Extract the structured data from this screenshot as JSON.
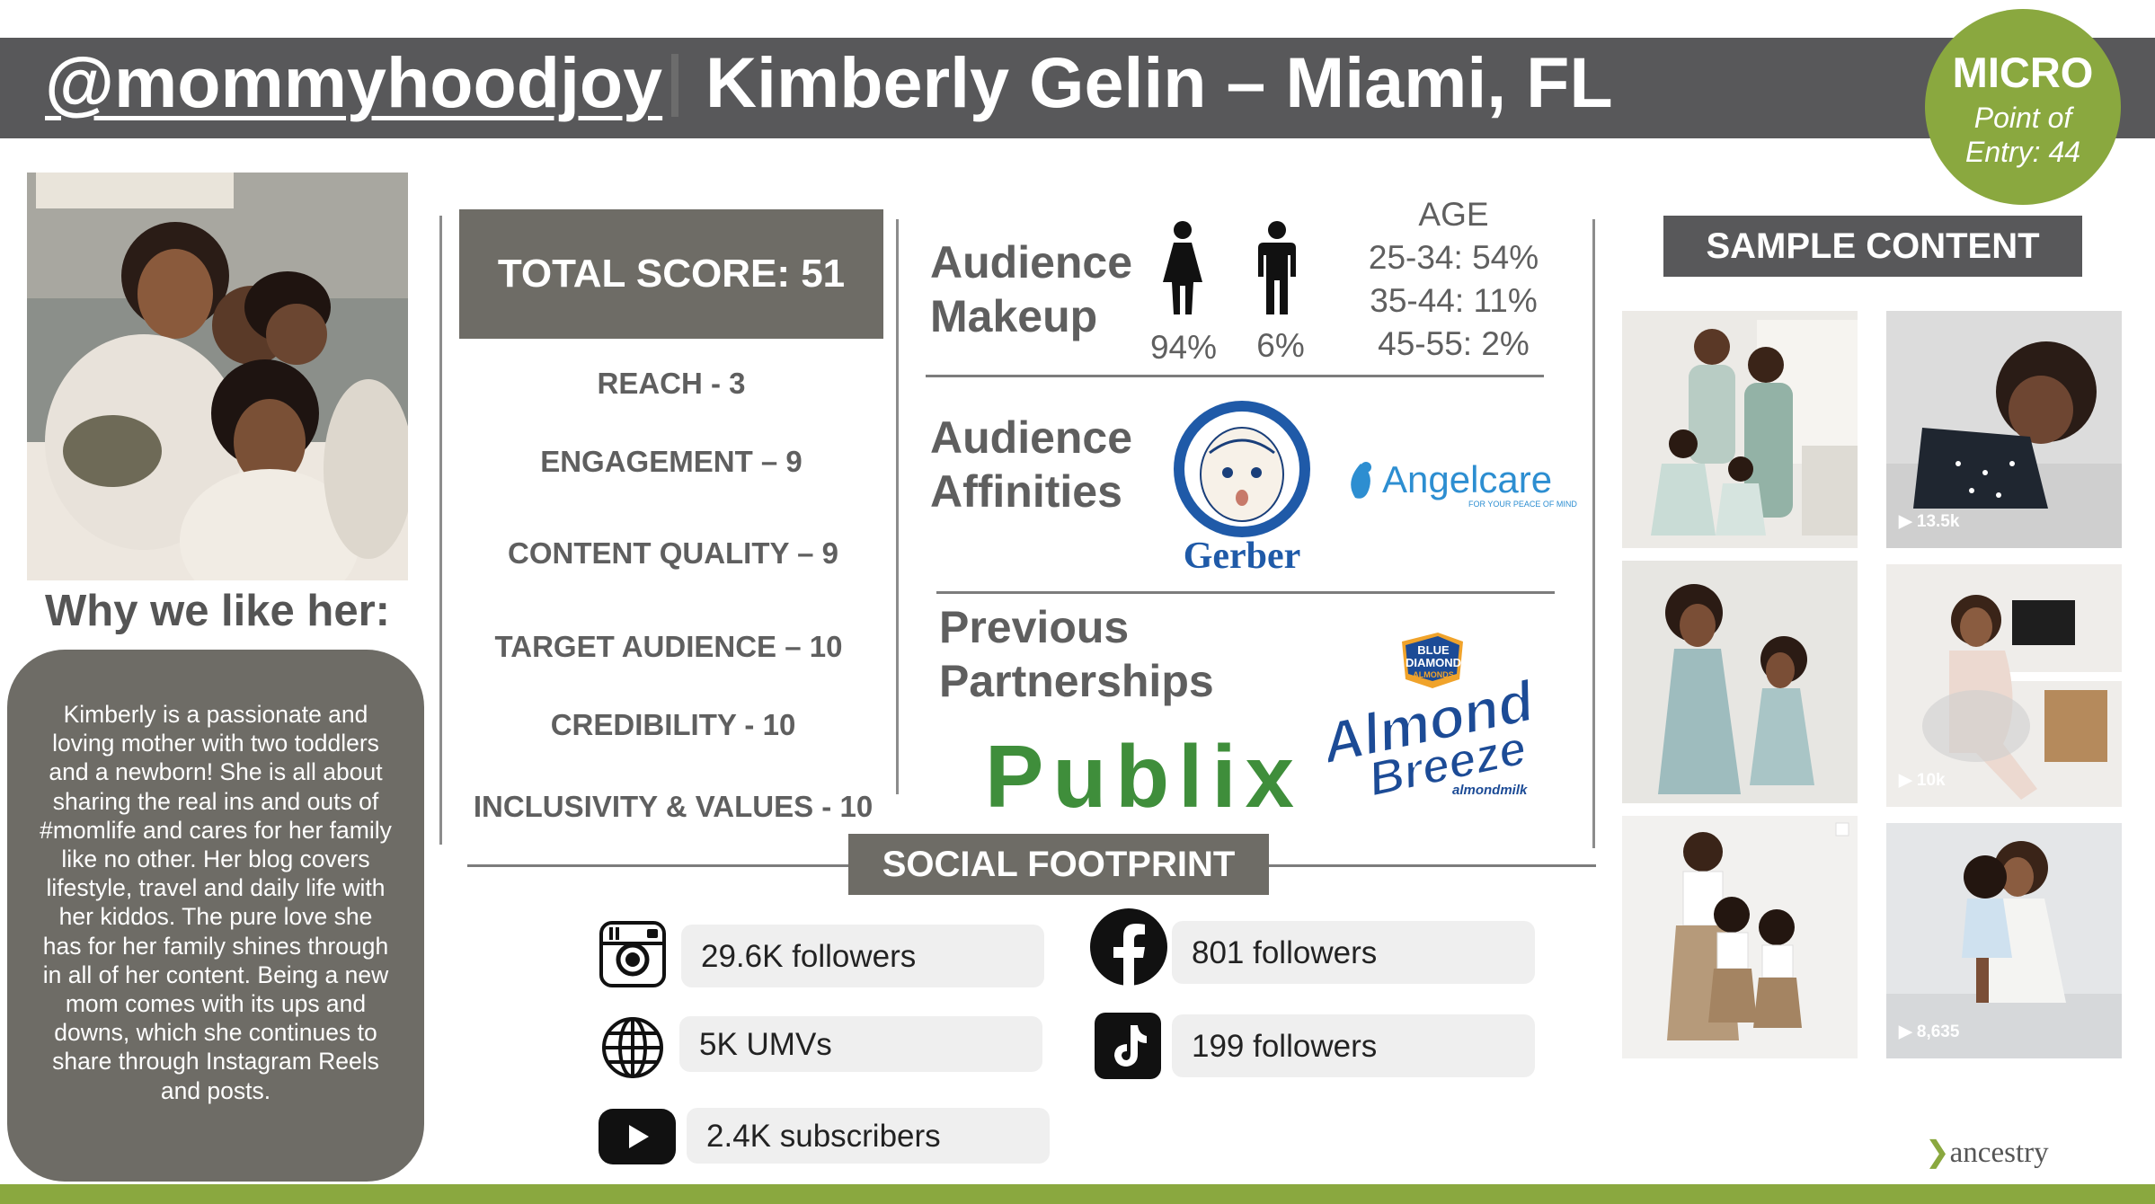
{
  "header": {
    "handle": "@mommyhoodjoy",
    "name": "Kimberly Gelin – Miami, FL"
  },
  "badge": {
    "tier": "MICRO",
    "entry_line1": "Point of",
    "entry_line2": "Entry: 44"
  },
  "why_title": "Why we like her:",
  "bio": "Kimberly is a passionate and loving mother with two toddlers and a newborn! She is all about sharing the real ins and outs of #momlife and cares for her family like no other. Her blog covers lifestyle, travel and daily life with her kiddos. The pure love she has for her family shines through in all of her content. Being a new mom comes with its ups and downs, which she continues to share through Instagram Reels and posts.",
  "scores": {
    "total": "TOTAL SCORE: 51",
    "items": [
      "REACH - 3",
      "ENGAGEMENT – 9",
      "CONTENT QUALITY – 9",
      "TARGET AUDIENCE – 10",
      "CREDIBILITY -  10",
      "INCLUSIVITY & VALUES - 10"
    ]
  },
  "audience": {
    "makeup_line1": "Audience",
    "makeup_line2": "Makeup",
    "female_pct": "94%",
    "male_pct": "6%",
    "age_title": "AGE",
    "age_rows": [
      "25-34: 54%",
      "35-44: 11%",
      "45-55: 2%"
    ],
    "affinities_line1": "Audience",
    "affinities_line2": "Affinities",
    "affinity_brands": [
      "Gerber",
      "Angelcare"
    ],
    "angelcare_tagline": "FOR YOUR PEACE OF MIND"
  },
  "partnerships": {
    "title_line1": "Previous",
    "title_line2": "Partnerships",
    "brands": [
      "Publix",
      "Almond Breeze"
    ],
    "blue_diamond": [
      "BLUE",
      "DIAMOND",
      "ALMONDS"
    ],
    "almond_breeze_line1": "Almond",
    "almond_breeze_line2": "Breeze",
    "almondmilk": "almondmilk"
  },
  "social": {
    "title": "SOCIAL FOOTPRINT",
    "instagram": "29.6K followers",
    "web": "5K UMVs",
    "youtube": "2.4K subscribers",
    "facebook": "801 followers",
    "tiktok": "199 followers"
  },
  "sample": {
    "title": "SAMPLE CONTENT",
    "views": [
      "13.5k",
      "10k",
      "8,635"
    ]
  },
  "brand_logo": "ancestry",
  "colors": {
    "header_bg": "#58585a",
    "accent_green": "#8aa83f",
    "box_bg": "#6e6c66",
    "pill_bg": "#efefef"
  }
}
